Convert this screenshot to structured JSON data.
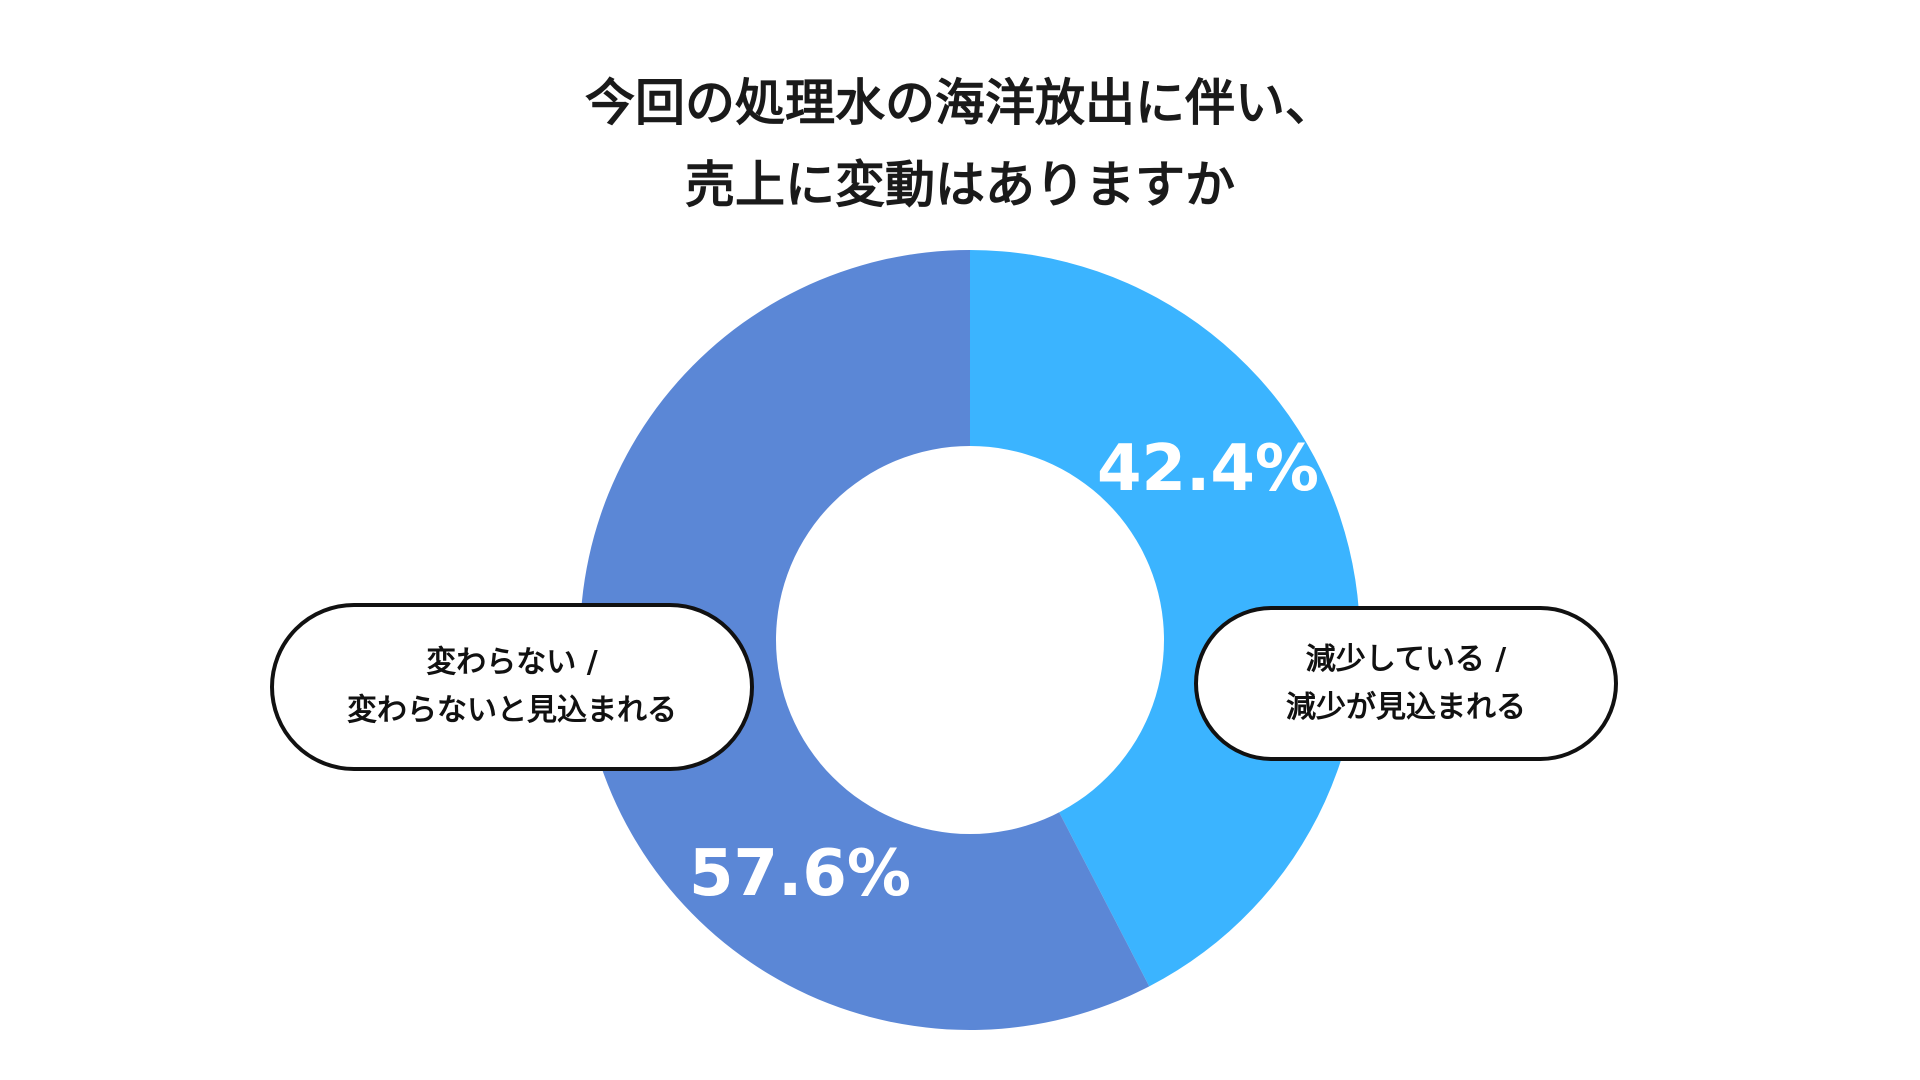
{
  "title": {
    "line1": "今回の処理水の海洋放出に伴い、",
    "line2": "売上に変動はありますか"
  },
  "chart_data": {
    "type": "pie",
    "donut": true,
    "title": "今回の処理水の海洋放出に伴い、売上に変動はありますか",
    "series": [
      {
        "name": "減少している / 減少が見込まれる",
        "label_line1": "減少している /",
        "label_line2": "減少が見込まれる",
        "value": 42.4,
        "display": "42.4%",
        "color": "#3bb4ff"
      },
      {
        "name": "変わらない / 変わらないと見込まれる",
        "label_line1": "変わらない /",
        "label_line2": "変わらないと見込まれる",
        "value": 57.6,
        "display": "57.6%",
        "color": "#5b87d6"
      }
    ]
  }
}
